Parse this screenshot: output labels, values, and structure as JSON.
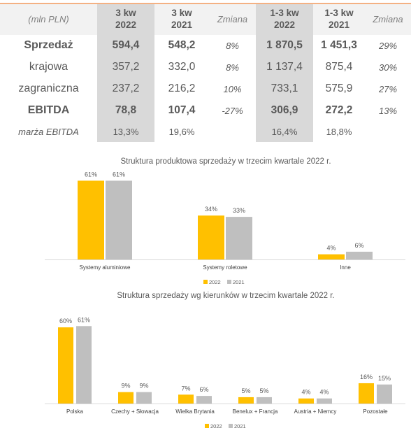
{
  "table": {
    "header": {
      "unit": "(mln PLN)",
      "col1": [
        "3 kw",
        "2022"
      ],
      "col2": [
        "3 kw",
        "2021"
      ],
      "col3": "Zmiana",
      "col4": [
        "1-3 kw",
        "2022"
      ],
      "col5": [
        "1-3 kw",
        "2021"
      ],
      "col6": "Zmiana"
    },
    "rows": [
      {
        "label": "Sprzedaż",
        "v": [
          "594,4",
          "548,2",
          "8%",
          "1 870,5",
          "1 451,3",
          "29%"
        ],
        "style": "bold"
      },
      {
        "label": "krajowa",
        "v": [
          "357,2",
          "332,0",
          "8%",
          "1 137,4",
          "875,4",
          "30%"
        ],
        "style": "normal"
      },
      {
        "label": "zagraniczna",
        "v": [
          "237,2",
          "216,2",
          "10%",
          "733,1",
          "575,9",
          "27%"
        ],
        "style": "normal"
      },
      {
        "label": "EBITDA",
        "v": [
          "78,8",
          "107,4",
          "-27%",
          "306,9",
          "272,2",
          "13%"
        ],
        "style": "bold"
      },
      {
        "label": "marża EBITDA",
        "v": [
          "13,3%",
          "19,6%",
          "",
          "16,4%",
          "18,8%",
          ""
        ],
        "style": "italic"
      }
    ],
    "colors": {
      "header_bg": "#f2f2f2",
      "highlight_bg": "#d9d9d9",
      "accent_line": "#f4b183"
    }
  },
  "chart_data": [
    {
      "type": "bar",
      "title": "Struktura produktowa sprzedaży w trzecim kwartale 2022 r.",
      "categories": [
        "Systemy aluminiowe",
        "Systemy roletowe",
        "Inne"
      ],
      "series": [
        {
          "name": "2022",
          "values": [
            61,
            34,
            4
          ],
          "labels": [
            "61%",
            "34%",
            "4%"
          ],
          "color": "#ffc000"
        },
        {
          "name": "2021",
          "values": [
            61,
            33,
            6
          ],
          "labels": [
            "61%",
            "33%",
            "6%"
          ],
          "color": "#bfbfbf"
        }
      ],
      "ylim": [
        0,
        65
      ],
      "legend": "bottom"
    },
    {
      "type": "bar",
      "title": "Struktura sprzedaży wg kierunków w trzecim kwartale 2022 r.",
      "categories": [
        "Polska",
        "Czechy + Słowacja",
        "Wielka Brytania",
        "Benelux + Francja",
        "Austria + Niemcy",
        "Pozostałe"
      ],
      "series": [
        {
          "name": "2022",
          "values": [
            60,
            9,
            7,
            5,
            4,
            16
          ],
          "labels": [
            "60%",
            "9%",
            "7%",
            "5%",
            "4%",
            "16%"
          ],
          "color": "#ffc000"
        },
        {
          "name": "2021",
          "values": [
            61,
            9,
            6,
            5,
            4,
            15
          ],
          "labels": [
            "61%",
            "9%",
            "6%",
            "5%",
            "4%",
            "15%"
          ],
          "color": "#bfbfbf"
        }
      ],
      "ylim": [
        0,
        65
      ],
      "legend": "bottom"
    }
  ]
}
